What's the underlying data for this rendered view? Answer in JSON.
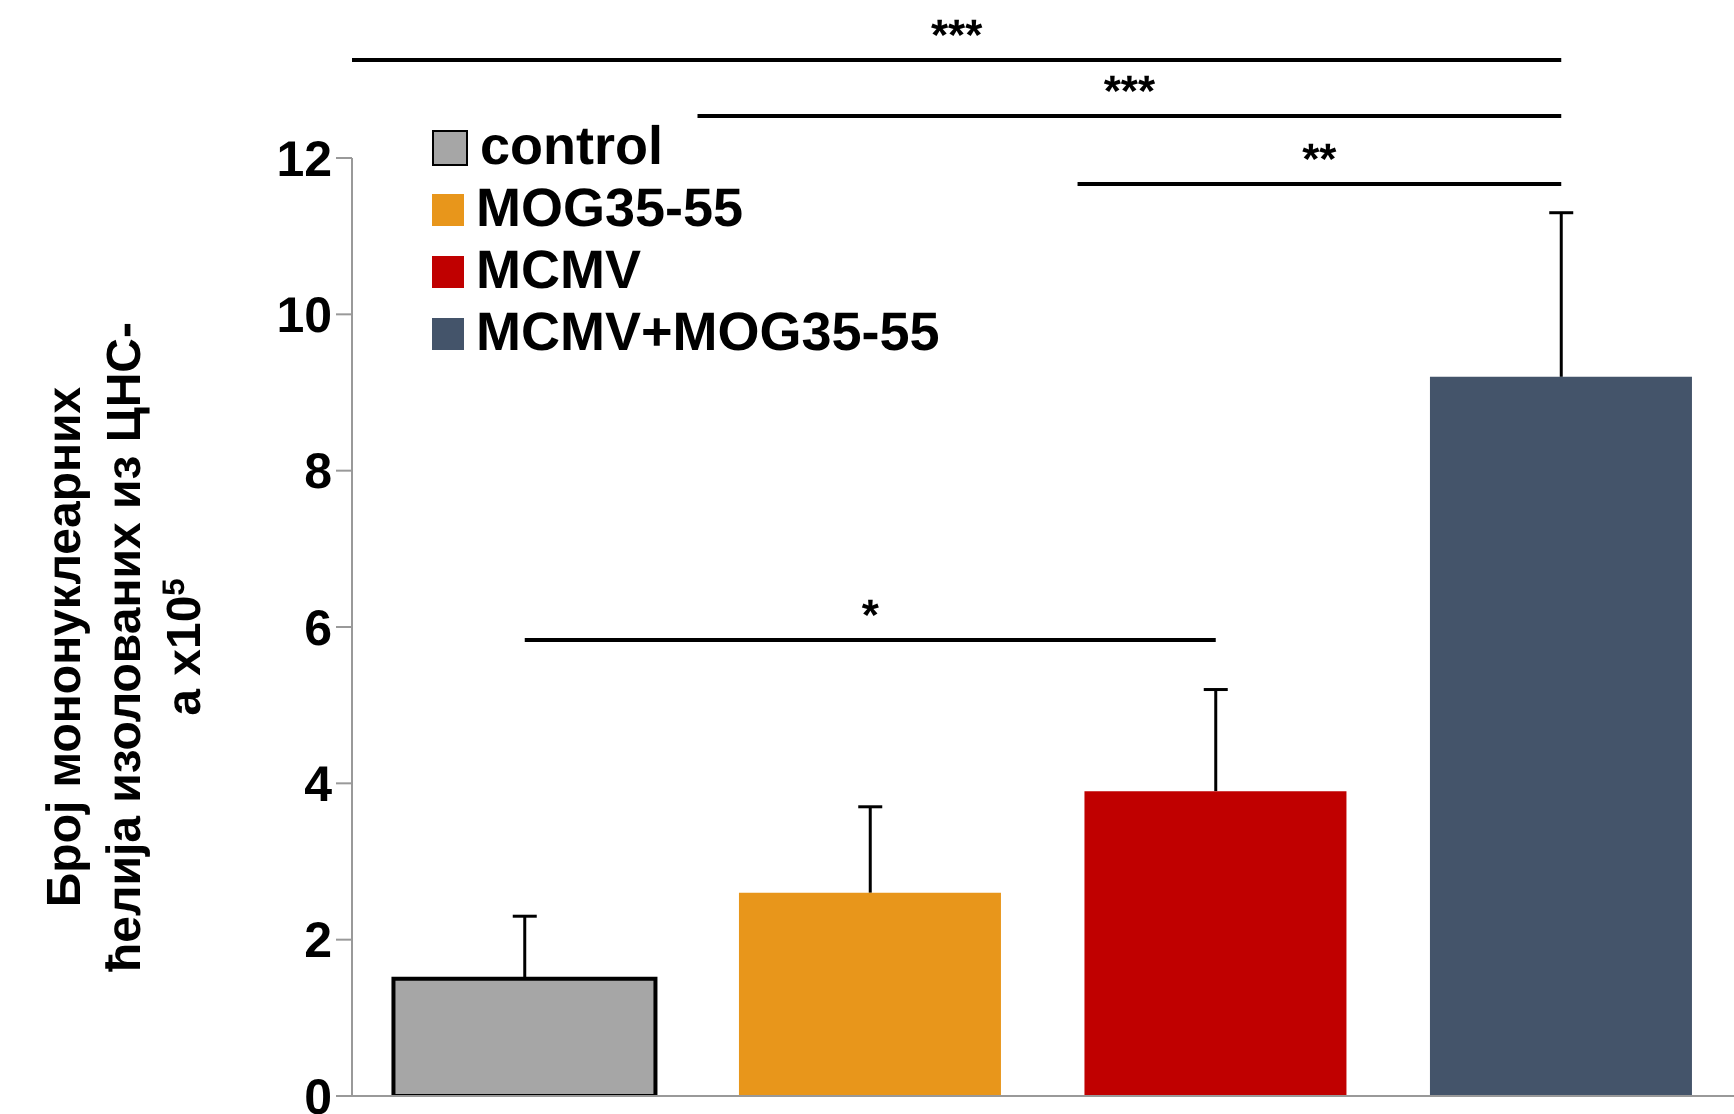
{
  "chart_data": {
    "type": "bar",
    "ylabel": "Број мононуклеарних ћелија изолованих из ЦНС-а x10$^{5}$",
    "categories": [
      null,
      null,
      null,
      null
    ],
    "stacked": true,
    "series": [
      {
        "name": "control",
        "color": "#a6a6a6",
        "values": [
          1.5,
          null,
          null,
          null
        ],
        "errors": [
          [
            1.5,
            2.3
          ],
          null,
          null,
          null
        ]
      },
      {
        "name": "MOG35-55",
        "color": "#e8961b",
        "values": [
          null,
          2.6,
          null,
          null
        ],
        "errors": [
          null,
          [
            2.6,
            3.7
          ],
          null,
          null
        ]
      },
      {
        "name": "MCMV",
        "color": "#c00000",
        "values": [
          null,
          null,
          3.9,
          null
        ],
        "errors": [
          null,
          null,
          [
            3.9,
            5.2
          ],
          null
        ]
      },
      {
        "name": "MCMV+MOG35-55",
        "color": "#44546a",
        "values": [
          null,
          null,
          null,
          9.2
        ],
        "errors": [
          null,
          null,
          null,
          [
            9.2,
            11.3
          ]
        ]
      }
    ],
    "ylim": [
      0,
      12
    ],
    "yticks": [
      0,
      2,
      4,
      6,
      8,
      10,
      12
    ],
    "grid": false,
    "legend": "top left",
    "annotations": [
      "***",
      "***",
      "**",
      "*"
    ]
  }
}
